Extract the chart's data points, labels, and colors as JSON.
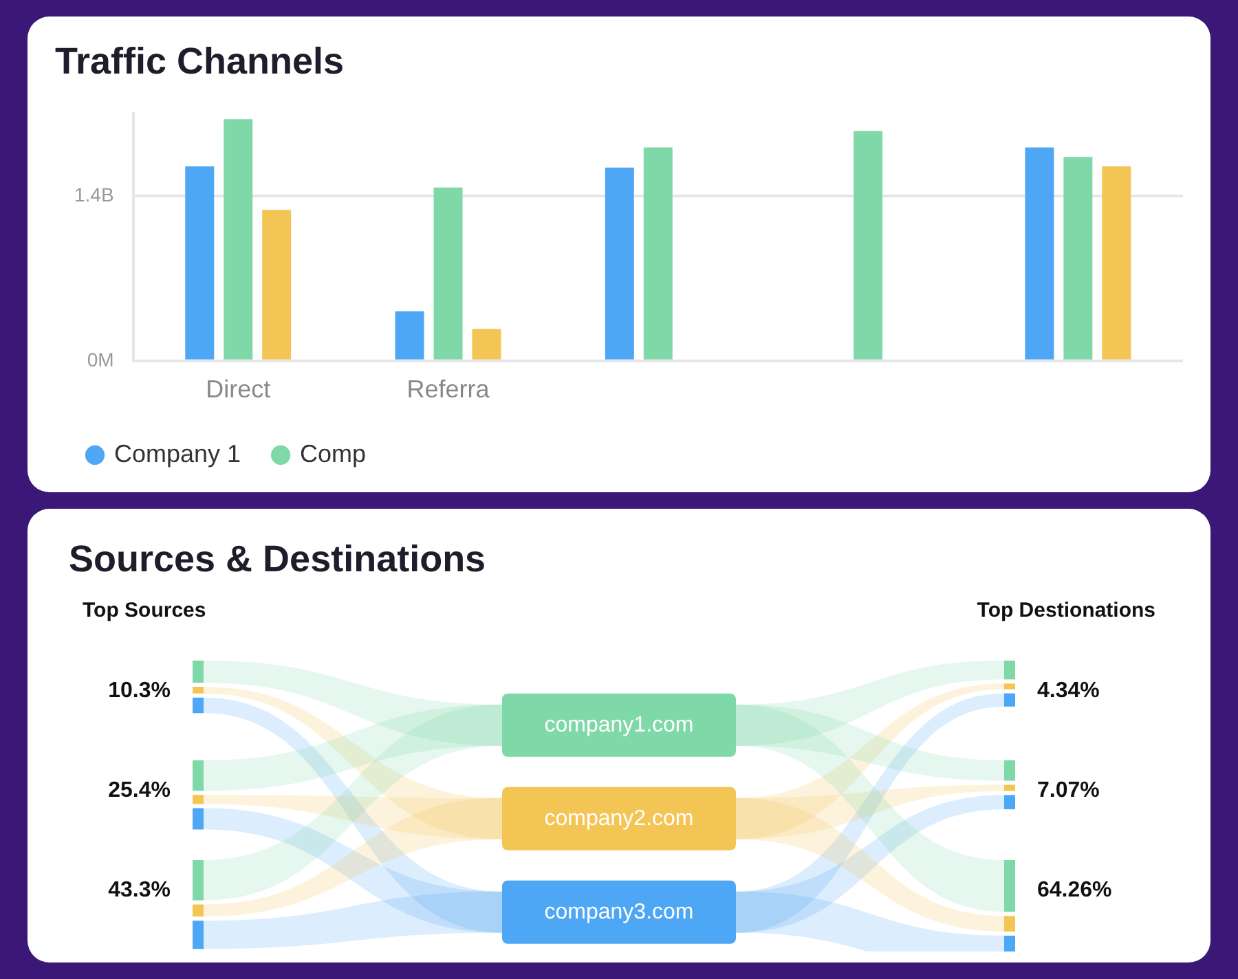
{
  "chart_data": [
    {
      "type": "bar",
      "title": "Traffic Channels",
      "categories": [
        "Direct",
        "Referra",
        null,
        null,
        null
      ],
      "series": [
        {
          "name": "Company 1",
          "color": "#4ea7f5",
          "values": [
            1.65,
            0.42,
            1.64,
            null,
            1.81
          ]
        },
        {
          "name": "Comp",
          "color": "#7fd8a8",
          "values": [
            2.05,
            1.47,
            1.81,
            1.95,
            1.73
          ]
        },
        {
          "color": "#f3c554",
          "values": [
            1.28,
            0.27,
            null,
            null,
            1.65
          ]
        }
      ],
      "ylim": [
        0,
        2.1
      ],
      "yticks": [
        {
          "value": 0,
          "label": "0M"
        },
        {
          "value": 1.4,
          "label": "1.4B"
        }
      ],
      "grid": "y",
      "legend": "bottom left"
    },
    {
      "type": "other",
      "title": "Sources & Destinations",
      "categories": [
        "company1.com",
        "company2.com",
        "company3.com"
      ],
      "colors": [
        "#7fd8a8",
        "#f3c554",
        "#4ea7f5"
      ],
      "series": [
        {
          "name": "Top Sources",
          "values": [
            10.3,
            25.4,
            43.3
          ],
          "value_labels": [
            "10.3%",
            "25.4%",
            "43.3%"
          ]
        },
        {
          "name": "Top Destionations",
          "values": [
            4.34,
            7.07,
            64.26
          ],
          "value_labels": [
            "4.34%",
            "7.07%",
            "64.26%"
          ]
        }
      ]
    }
  ]
}
